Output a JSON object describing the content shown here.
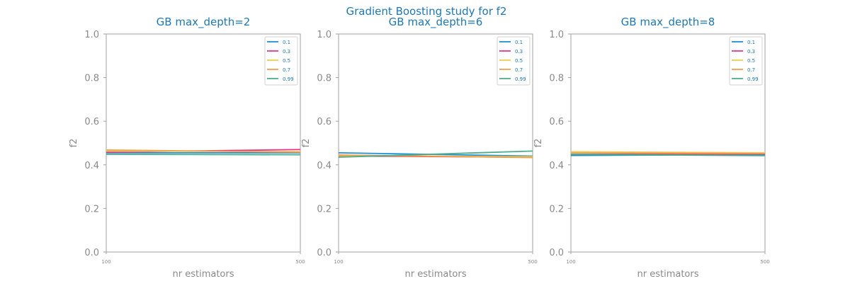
{
  "figure_title": "Gradient Boosting study for f2",
  "colors": {
    "title": "#1f77b4",
    "axis_text": "#8a8a8a",
    "axis_line": "#a0a0a0",
    "legend_text": "#1f77b4"
  },
  "chart_data": [
    {
      "type": "line",
      "title": "GB max_depth=2",
      "xlabel": "nr estimators",
      "ylabel": "f2",
      "x": [
        100,
        500
      ],
      "x_ticks": [
        "100",
        "500"
      ],
      "ylim": [
        0,
        1
      ],
      "y_ticks": [
        "0.0",
        "0.2",
        "0.4",
        "0.6",
        "0.8",
        "1.0"
      ],
      "grid": false,
      "legend_position": "top-right",
      "series": [
        {
          "name": "0.1",
          "color": "#1f8fd6",
          "values": [
            0.455,
            0.455
          ]
        },
        {
          "name": "0.3",
          "color": "#e8368a",
          "values": [
            0.458,
            0.47
          ]
        },
        {
          "name": "0.5",
          "color": "#f2cc52",
          "values": [
            0.463,
            0.46
          ]
        },
        {
          "name": "0.7",
          "color": "#f0a04b",
          "values": [
            0.468,
            0.458
          ]
        },
        {
          "name": "0.99",
          "color": "#4aad8b",
          "values": [
            0.448,
            0.446
          ]
        }
      ]
    },
    {
      "type": "line",
      "title": "GB max_depth=6",
      "xlabel": "nr estimators",
      "ylabel": "f2",
      "x": [
        100,
        500
      ],
      "x_ticks": [
        "100",
        "500"
      ],
      "ylim": [
        0,
        1
      ],
      "y_ticks": [
        "0.0",
        "0.2",
        "0.4",
        "0.6",
        "0.8",
        "1.0"
      ],
      "grid": false,
      "legend_position": "top-right",
      "series": [
        {
          "name": "0.1",
          "color": "#1f8fd6",
          "values": [
            0.455,
            0.44
          ]
        },
        {
          "name": "0.3",
          "color": "#e8368a",
          "values": [
            0.44,
            0.435
          ]
        },
        {
          "name": "0.5",
          "color": "#f2cc52",
          "values": [
            0.442,
            0.437
          ]
        },
        {
          "name": "0.7",
          "color": "#f0a04b",
          "values": [
            0.445,
            0.433
          ]
        },
        {
          "name": "0.99",
          "color": "#4aad8b",
          "values": [
            0.435,
            0.463
          ]
        }
      ]
    },
    {
      "type": "line",
      "title": "GB max_depth=8",
      "xlabel": "nr estimators",
      "ylabel": "f2",
      "x": [
        100,
        500
      ],
      "x_ticks": [
        "100",
        "500"
      ],
      "ylim": [
        0,
        1
      ],
      "y_ticks": [
        "0.0",
        "0.2",
        "0.4",
        "0.6",
        "0.8",
        "1.0"
      ],
      "grid": false,
      "legend_position": "top-right",
      "series": [
        {
          "name": "0.1",
          "color": "#1f8fd6",
          "values": [
            0.443,
            0.446
          ]
        },
        {
          "name": "0.3",
          "color": "#e8368a",
          "values": [
            0.448,
            0.45
          ]
        },
        {
          "name": "0.5",
          "color": "#f2cc52",
          "values": [
            0.46,
            0.455
          ]
        },
        {
          "name": "0.7",
          "color": "#f0a04b",
          "values": [
            0.455,
            0.452
          ]
        },
        {
          "name": "0.99",
          "color": "#4aad8b",
          "values": [
            0.448,
            0.442
          ]
        }
      ]
    }
  ]
}
